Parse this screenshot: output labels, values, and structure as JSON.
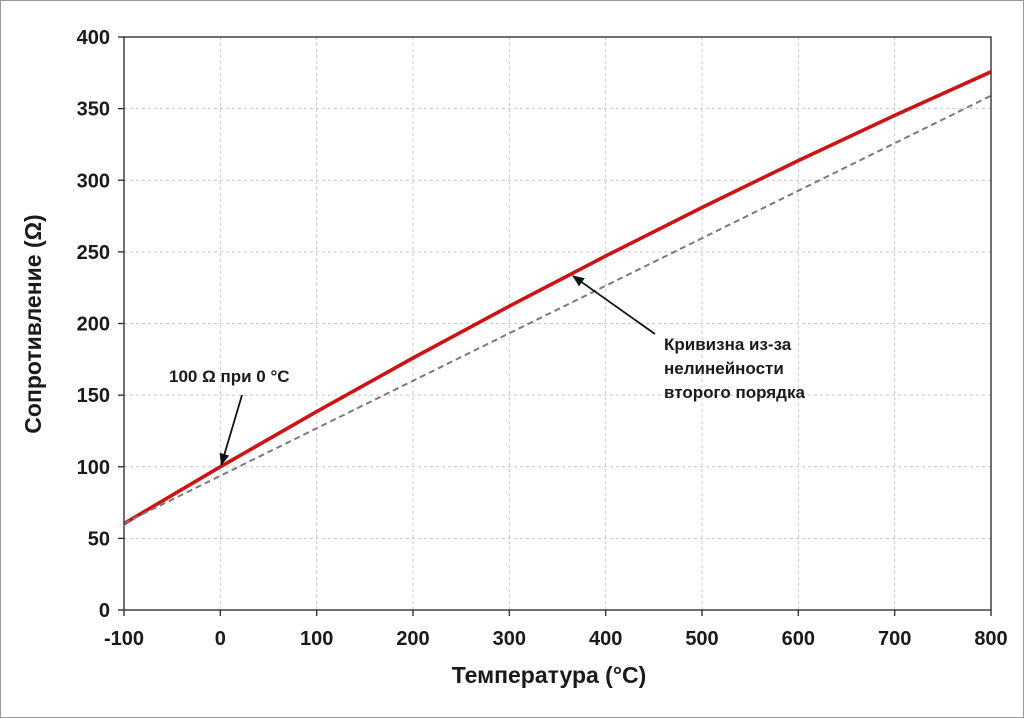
{
  "chart_data": {
    "type": "line",
    "title": "",
    "xlabel": "Температура (°C)",
    "ylabel": "Сопротивление (Ω)",
    "xlim": [
      -100,
      800
    ],
    "ylim": [
      0,
      400
    ],
    "grid": true,
    "x_ticks": [
      -100,
      0,
      100,
      200,
      300,
      400,
      500,
      600,
      700,
      800
    ],
    "y_ticks": [
      0,
      50,
      100,
      150,
      200,
      250,
      300,
      350,
      400
    ],
    "series": [
      {
        "style": "solid",
        "color": "#cc1414",
        "x": [
          -100,
          0,
          100,
          200,
          300,
          400,
          500,
          600,
          700,
          800
        ],
        "y": [
          60.3,
          100,
          138.5,
          175.9,
          212.1,
          247.1,
          281.0,
          313.7,
          345.3,
          375.7
        ]
      },
      {
        "style": "dashed",
        "color": "#7a7a7a",
        "x": [
          -100,
          800
        ],
        "y": [
          60.5,
          359
        ]
      }
    ],
    "annotations": [
      {
        "text": "100 Ω при 0 °C",
        "target": [
          0,
          100
        ]
      },
      {
        "lines": [
          "Кривизна из-за",
          "нелинейности",
          "второго порядка"
        ],
        "target": [
          365,
          236
        ]
      }
    ]
  }
}
